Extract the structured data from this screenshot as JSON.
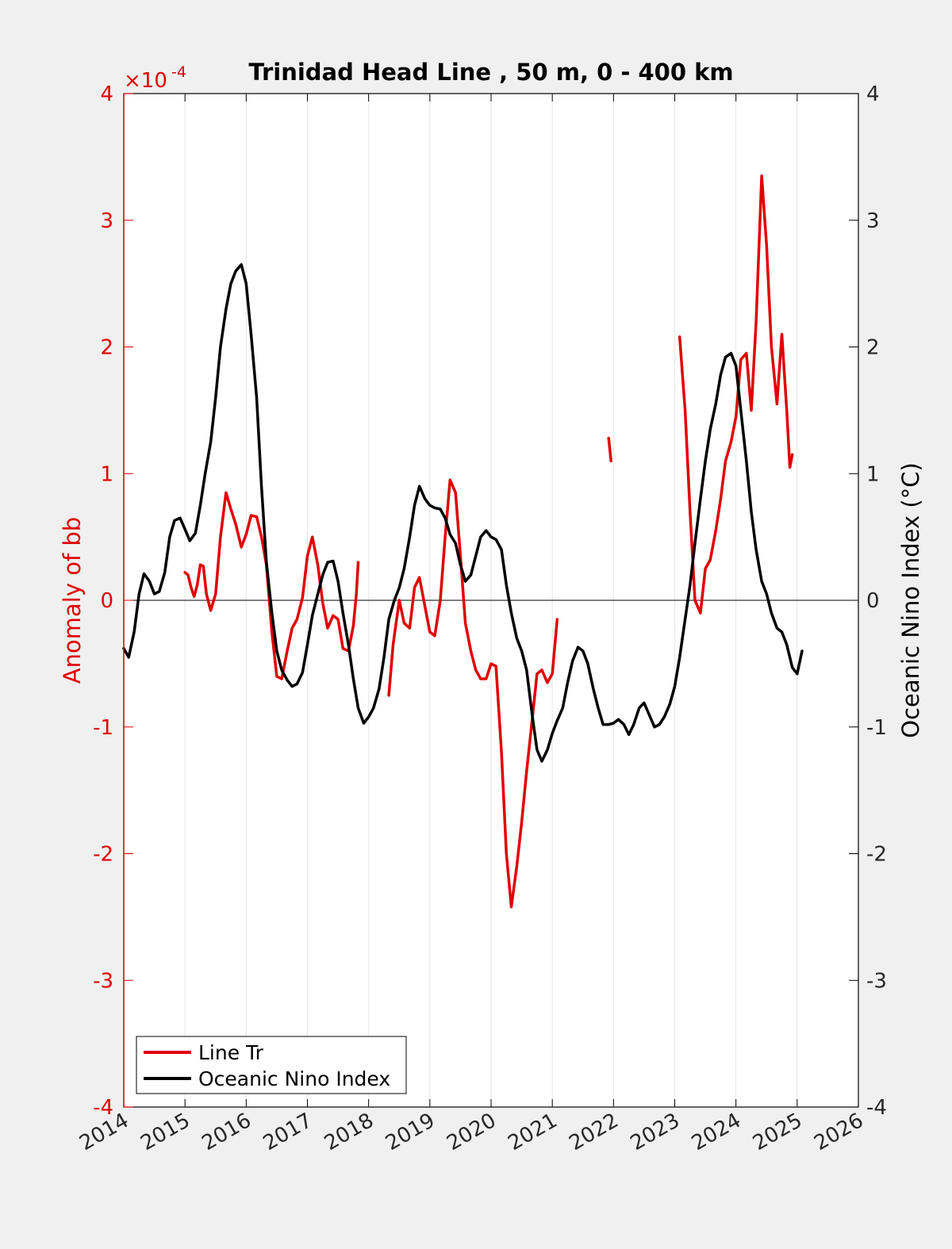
{
  "chart_data": {
    "type": "line",
    "title": "Trinidad Head Line , 50 m, 0 - 400 km",
    "xlabel": "",
    "ylabel_left": "Anomaly of bb",
    "ylabel_right": "Oceanic Nino Index (°C)",
    "left_exponent_base": "×10",
    "left_exponent_power": "-4",
    "xlim": [
      2014,
      2026
    ],
    "ylim_left": [
      -4,
      4
    ],
    "ylim_right": [
      -4,
      4
    ],
    "x_ticks": [
      "2014",
      "2015",
      "2016",
      "2017",
      "2018",
      "2019",
      "2020",
      "2021",
      "2022",
      "2023",
      "2024",
      "2025",
      "2026"
    ],
    "y_ticks_left": [
      "-4",
      "-3",
      "-2",
      "-1",
      "0",
      "1",
      "2",
      "3",
      "4"
    ],
    "y_ticks_right": [
      "-4",
      "-3",
      "-2",
      "-1",
      "0",
      "1",
      "2",
      "3",
      "4"
    ],
    "vertical_grid": true,
    "zero_line": true,
    "legend_position": "bottom-left",
    "colors": {
      "line_tr": "#e00000",
      "oni": "#000000",
      "left_axis": "#e00000",
      "right_axis": "#000000"
    },
    "series": [
      {
        "name": "Line Tr",
        "axis": "left",
        "segments": [
          [
            [
              2015.0,
              0.22
            ],
            [
              2015.05,
              0.2
            ],
            [
              2015.1,
              0.1
            ],
            [
              2015.15,
              0.03
            ],
            [
              2015.2,
              0.12
            ],
            [
              2015.25,
              0.28
            ],
            [
              2015.3,
              0.27
            ],
            [
              2015.35,
              0.05
            ],
            [
              2015.42,
              -0.08
            ],
            [
              2015.5,
              0.05
            ],
            [
              2015.58,
              0.5
            ],
            [
              2015.67,
              0.85
            ],
            [
              2015.75,
              0.72
            ],
            [
              2015.83,
              0.6
            ],
            [
              2015.92,
              0.42
            ],
            [
              2016.0,
              0.52
            ],
            [
              2016.08,
              0.67
            ],
            [
              2016.17,
              0.66
            ],
            [
              2016.25,
              0.5
            ],
            [
              2016.33,
              0.28
            ],
            [
              2016.42,
              -0.25
            ],
            [
              2016.5,
              -0.6
            ],
            [
              2016.58,
              -0.62
            ],
            [
              2016.67,
              -0.4
            ],
            [
              2016.75,
              -0.22
            ],
            [
              2016.83,
              -0.15
            ],
            [
              2016.92,
              0.02
            ],
            [
              2017.0,
              0.35
            ],
            [
              2017.08,
              0.5
            ],
            [
              2017.17,
              0.28
            ],
            [
              2017.25,
              -0.02
            ],
            [
              2017.33,
              -0.22
            ],
            [
              2017.42,
              -0.12
            ],
            [
              2017.5,
              -0.15
            ],
            [
              2017.58,
              -0.38
            ],
            [
              2017.67,
              -0.4
            ],
            [
              2017.75,
              -0.2
            ],
            [
              2017.8,
              0.05
            ],
            [
              2017.83,
              0.3
            ]
          ],
          [
            [
              2018.33,
              -0.75
            ],
            [
              2018.4,
              -0.35
            ],
            [
              2018.5,
              0.0
            ],
            [
              2018.58,
              -0.18
            ],
            [
              2018.67,
              -0.22
            ],
            [
              2018.75,
              0.1
            ],
            [
              2018.83,
              0.18
            ],
            [
              2018.92,
              -0.05
            ],
            [
              2019.0,
              -0.25
            ],
            [
              2019.08,
              -0.28
            ],
            [
              2019.17,
              0.0
            ],
            [
              2019.25,
              0.5
            ],
            [
              2019.33,
              0.95
            ],
            [
              2019.42,
              0.85
            ],
            [
              2019.5,
              0.35
            ],
            [
              2019.58,
              -0.18
            ],
            [
              2019.67,
              -0.4
            ],
            [
              2019.75,
              -0.55
            ],
            [
              2019.83,
              -0.62
            ],
            [
              2019.92,
              -0.62
            ],
            [
              2020.0,
              -0.5
            ],
            [
              2020.08,
              -0.52
            ],
            [
              2020.17,
              -1.2
            ],
            [
              2020.25,
              -2.0
            ],
            [
              2020.33,
              -2.42
            ],
            [
              2020.42,
              -2.1
            ],
            [
              2020.5,
              -1.75
            ],
            [
              2020.58,
              -1.35
            ],
            [
              2020.67,
              -0.95
            ],
            [
              2020.75,
              -0.58
            ],
            [
              2020.83,
              -0.55
            ],
            [
              2020.92,
              -0.65
            ],
            [
              2021.0,
              -0.58
            ],
            [
              2021.08,
              -0.15
            ]
          ],
          [
            [
              2021.92,
              1.28
            ],
            [
              2021.96,
              1.1
            ]
          ],
          [
            [
              2023.08,
              2.08
            ],
            [
              2023.17,
              1.5
            ],
            [
              2023.25,
              0.7
            ],
            [
              2023.33,
              0.0
            ],
            [
              2023.42,
              -0.1
            ],
            [
              2023.5,
              0.25
            ],
            [
              2023.58,
              0.32
            ],
            [
              2023.67,
              0.55
            ],
            [
              2023.75,
              0.8
            ],
            [
              2023.83,
              1.1
            ],
            [
              2023.92,
              1.25
            ],
            [
              2024.0,
              1.45
            ],
            [
              2024.08,
              1.9
            ],
            [
              2024.17,
              1.95
            ],
            [
              2024.25,
              1.5
            ],
            [
              2024.33,
              2.2
            ],
            [
              2024.42,
              3.35
            ],
            [
              2024.5,
              2.8
            ],
            [
              2024.58,
              2.0
            ],
            [
              2024.67,
              1.55
            ],
            [
              2024.75,
              2.1
            ],
            [
              2024.83,
              1.5
            ],
            [
              2024.88,
              1.05
            ],
            [
              2024.92,
              1.15
            ]
          ]
        ]
      },
      {
        "name": "Oceanic Nino Index",
        "axis": "right",
        "segments": [
          [
            [
              2014.0,
              -0.38
            ],
            [
              2014.08,
              -0.45
            ],
            [
              2014.17,
              -0.25
            ],
            [
              2014.25,
              0.05
            ],
            [
              2014.33,
              0.21
            ],
            [
              2014.42,
              0.15
            ],
            [
              2014.5,
              0.05
            ],
            [
              2014.58,
              0.07
            ],
            [
              2014.67,
              0.22
            ],
            [
              2014.75,
              0.5
            ],
            [
              2014.83,
              0.63
            ],
            [
              2014.92,
              0.65
            ],
            [
              2015.0,
              0.56
            ],
            [
              2015.08,
              0.47
            ],
            [
              2015.17,
              0.53
            ],
            [
              2015.25,
              0.75
            ],
            [
              2015.33,
              1.0
            ],
            [
              2015.42,
              1.25
            ],
            [
              2015.5,
              1.6
            ],
            [
              2015.58,
              2.0
            ],
            [
              2015.67,
              2.3
            ],
            [
              2015.75,
              2.5
            ],
            [
              2015.83,
              2.6
            ],
            [
              2015.92,
              2.65
            ],
            [
              2016.0,
              2.5
            ],
            [
              2016.08,
              2.1
            ],
            [
              2016.17,
              1.6
            ],
            [
              2016.25,
              0.9
            ],
            [
              2016.33,
              0.3
            ],
            [
              2016.42,
              -0.1
            ],
            [
              2016.5,
              -0.4
            ],
            [
              2016.58,
              -0.55
            ],
            [
              2016.67,
              -0.63
            ],
            [
              2016.75,
              -0.68
            ],
            [
              2016.83,
              -0.66
            ],
            [
              2016.92,
              -0.57
            ],
            [
              2017.0,
              -0.35
            ],
            [
              2017.08,
              -0.12
            ],
            [
              2017.17,
              0.05
            ],
            [
              2017.25,
              0.2
            ],
            [
              2017.33,
              0.3
            ],
            [
              2017.42,
              0.31
            ],
            [
              2017.5,
              0.15
            ],
            [
              2017.58,
              -0.1
            ],
            [
              2017.67,
              -0.35
            ],
            [
              2017.75,
              -0.62
            ],
            [
              2017.83,
              -0.85
            ],
            [
              2017.92,
              -0.97
            ],
            [
              2018.0,
              -0.92
            ],
            [
              2018.08,
              -0.85
            ],
            [
              2018.17,
              -0.7
            ],
            [
              2018.25,
              -0.45
            ],
            [
              2018.33,
              -0.15
            ],
            [
              2018.42,
              0.0
            ],
            [
              2018.5,
              0.1
            ],
            [
              2018.58,
              0.25
            ],
            [
              2018.67,
              0.5
            ],
            [
              2018.75,
              0.75
            ],
            [
              2018.83,
              0.9
            ],
            [
              2018.92,
              0.8
            ],
            [
              2019.0,
              0.75
            ],
            [
              2019.08,
              0.73
            ],
            [
              2019.17,
              0.72
            ],
            [
              2019.25,
              0.65
            ],
            [
              2019.33,
              0.52
            ],
            [
              2019.42,
              0.45
            ],
            [
              2019.5,
              0.28
            ],
            [
              2019.58,
              0.15
            ],
            [
              2019.67,
              0.2
            ],
            [
              2019.75,
              0.35
            ],
            [
              2019.83,
              0.5
            ],
            [
              2019.92,
              0.55
            ],
            [
              2020.0,
              0.5
            ],
            [
              2020.08,
              0.48
            ],
            [
              2020.17,
              0.4
            ],
            [
              2020.25,
              0.12
            ],
            [
              2020.33,
              -0.1
            ],
            [
              2020.42,
              -0.3
            ],
            [
              2020.5,
              -0.4
            ],
            [
              2020.58,
              -0.55
            ],
            [
              2020.67,
              -0.9
            ],
            [
              2020.75,
              -1.18
            ],
            [
              2020.83,
              -1.27
            ],
            [
              2020.92,
              -1.18
            ],
            [
              2021.0,
              -1.05
            ],
            [
              2021.08,
              -0.95
            ],
            [
              2021.17,
              -0.85
            ],
            [
              2021.25,
              -0.65
            ],
            [
              2021.33,
              -0.48
            ],
            [
              2021.42,
              -0.37
            ],
            [
              2021.5,
              -0.4
            ],
            [
              2021.58,
              -0.5
            ],
            [
              2021.67,
              -0.7
            ],
            [
              2021.75,
              -0.85
            ],
            [
              2021.83,
              -0.98
            ],
            [
              2021.92,
              -0.98
            ],
            [
              2022.0,
              -0.97
            ],
            [
              2022.08,
              -0.94
            ],
            [
              2022.17,
              -0.98
            ],
            [
              2022.25,
              -1.06
            ],
            [
              2022.33,
              -0.98
            ],
            [
              2022.42,
              -0.85
            ],
            [
              2022.5,
              -0.81
            ],
            [
              2022.58,
              -0.9
            ],
            [
              2022.67,
              -1.0
            ],
            [
              2022.75,
              -0.98
            ],
            [
              2022.83,
              -0.92
            ],
            [
              2022.92,
              -0.82
            ],
            [
              2023.0,
              -0.68
            ],
            [
              2023.08,
              -0.45
            ],
            [
              2023.17,
              -0.15
            ],
            [
              2023.25,
              0.12
            ],
            [
              2023.33,
              0.45
            ],
            [
              2023.42,
              0.8
            ],
            [
              2023.5,
              1.1
            ],
            [
              2023.58,
              1.35
            ],
            [
              2023.67,
              1.55
            ],
            [
              2023.75,
              1.78
            ],
            [
              2023.83,
              1.92
            ],
            [
              2023.92,
              1.95
            ],
            [
              2024.0,
              1.85
            ],
            [
              2024.08,
              1.5
            ],
            [
              2024.17,
              1.1
            ],
            [
              2024.25,
              0.7
            ],
            [
              2024.33,
              0.4
            ],
            [
              2024.42,
              0.15
            ],
            [
              2024.5,
              0.05
            ],
            [
              2024.58,
              -0.1
            ],
            [
              2024.67,
              -0.22
            ],
            [
              2024.75,
              -0.25
            ],
            [
              2024.83,
              -0.35
            ],
            [
              2024.92,
              -0.53
            ],
            [
              2025.0,
              -0.58
            ],
            [
              2025.08,
              -0.4
            ]
          ]
        ]
      }
    ]
  }
}
